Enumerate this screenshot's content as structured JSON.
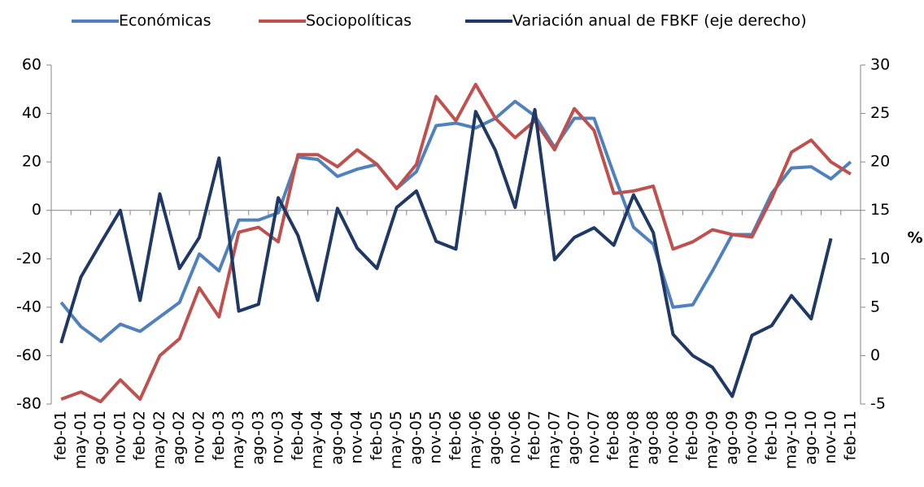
{
  "chart_data": {
    "type": "line",
    "categories": [
      "feb-01",
      "may-01",
      "ago-01",
      "nov-01",
      "feb-02",
      "may-02",
      "ago-02",
      "nov-02",
      "feb-03",
      "may-03",
      "ago-03",
      "nov-03",
      "feb-04",
      "may-04",
      "ago-04",
      "nov-04",
      "feb-05",
      "may-05",
      "ago-05",
      "nov-05",
      "feb-06",
      "may-06",
      "ago-06",
      "nov-06",
      "feb-07",
      "may-07",
      "ago-07",
      "nov-07",
      "feb-08",
      "may-08",
      "ago-08",
      "nov-08",
      "feb-09",
      "may-09",
      "ago-09",
      "nov-09",
      "feb-10",
      "may-10",
      "ago-10",
      "nov-10",
      "feb-11"
    ],
    "series": [
      {
        "name": "Económicas",
        "color": "#4f81bd",
        "values": [
          -38,
          -48,
          -54,
          -47,
          -50,
          -44,
          -38,
          -18,
          -25,
          -4,
          -4,
          -1,
          22,
          21,
          14,
          17,
          19,
          9,
          16,
          35,
          36,
          34,
          38,
          45,
          39,
          26,
          38,
          38,
          15,
          -7,
          -14,
          -40,
          -39,
          -25,
          -10,
          -10,
          7,
          17.5,
          18,
          13,
          20
        ]
      },
      {
        "name": "Sociopolíticas",
        "color": "#c0504d",
        "values": [
          -78,
          -75,
          -79,
          -70,
          -78,
          -60,
          -53,
          -32,
          -44,
          -9,
          -7,
          -13,
          23,
          23,
          18,
          25,
          19,
          9,
          19,
          47,
          37,
          52,
          38,
          30,
          37,
          25,
          42,
          33,
          7,
          8,
          10,
          -16,
          -13,
          -8,
          -10,
          -11,
          5,
          24,
          29,
          20,
          15
        ]
      },
      {
        "name": "Variación anual de FBKF (eje derecho)",
        "color": "#1f3864",
        "axis": "y2",
        "values": [
          1.3,
          8.1,
          11.6,
          15,
          5.7,
          16.7,
          9,
          12.2,
          20.4,
          4.6,
          5.3,
          16.3,
          12.4,
          5.7,
          15.2,
          11.1,
          9,
          15.3,
          17,
          11.8,
          11,
          25.2,
          21.2,
          15.3,
          25.4,
          9.9,
          12.2,
          13.2,
          11.4,
          16.6,
          12.7,
          2.2,
          0,
          -1.2,
          -4.2,
          2.1,
          3.1,
          6.2,
          3.8,
          12.1,
          null
        ]
      }
    ],
    "ylim": [
      -80,
      60
    ],
    "yticks": [
      -80,
      -60,
      -40,
      -20,
      0,
      20,
      40,
      60
    ],
    "y2lim": [
      -5,
      30
    ],
    "y2ticks": [
      -5,
      0,
      5,
      10,
      15,
      20,
      25,
      30
    ],
    "y2label": "%"
  }
}
